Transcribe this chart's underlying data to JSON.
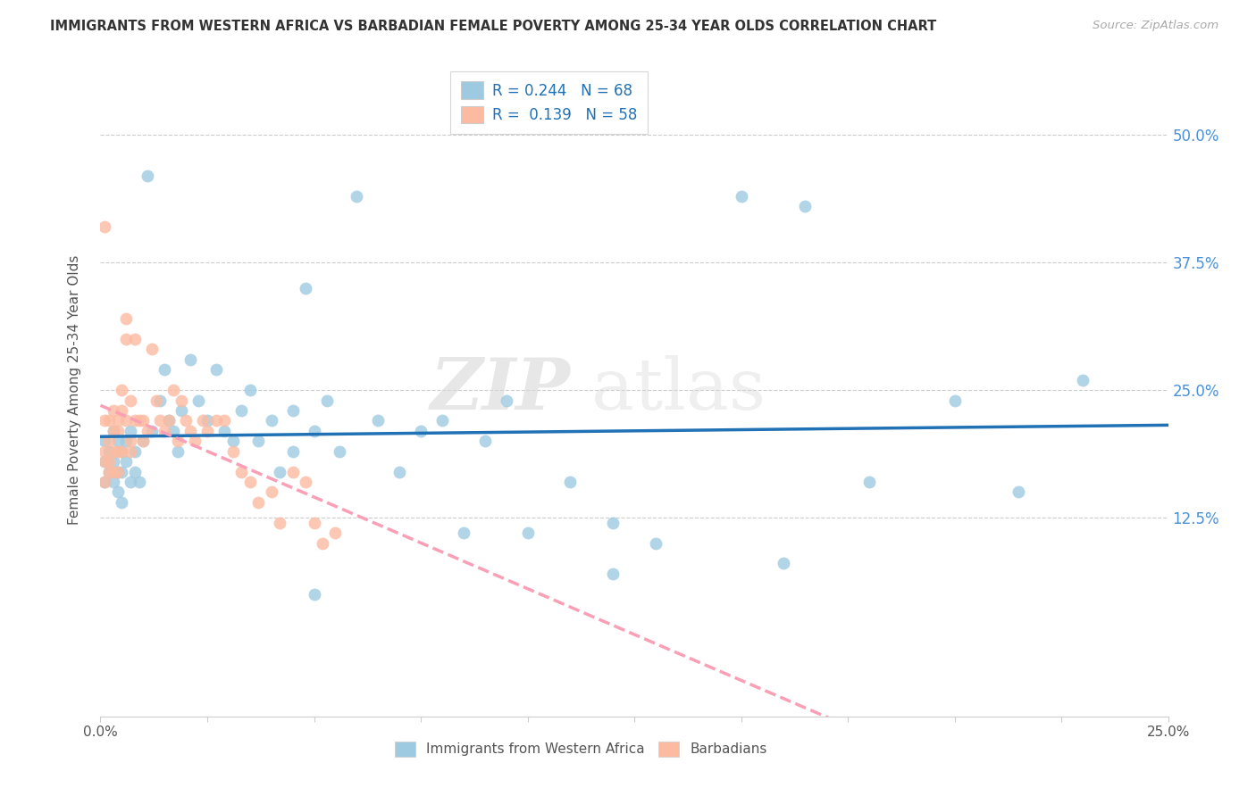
{
  "title": "IMMIGRANTS FROM WESTERN AFRICA VS BARBADIAN FEMALE POVERTY AMONG 25-34 YEAR OLDS CORRELATION CHART",
  "source": "Source: ZipAtlas.com",
  "ylabel": "Female Poverty Among 25-34 Year Olds",
  "yticks_labels": [
    "50.0%",
    "37.5%",
    "25.0%",
    "12.5%"
  ],
  "ytick_vals": [
    0.5,
    0.375,
    0.25,
    0.125
  ],
  "xtick_show": [
    "0.0%",
    "25.0%"
  ],
  "xmin": 0.0,
  "xmax": 0.25,
  "ymin": -0.07,
  "ymax": 0.57,
  "r_blue": "0.244",
  "n_blue": "68",
  "r_pink": "0.139",
  "n_pink": "58",
  "color_blue_scatter": "#9ecae1",
  "color_pink_scatter": "#fcbba1",
  "color_blue_line": "#2171b5",
  "color_pink_line": "#fa9fb5",
  "color_grid": "#cccccc",
  "watermark_zip": "ZIP",
  "watermark_atlas": "atlas",
  "legend_label_blue": "Immigrants from Western Africa",
  "legend_label_pink": "Barbadians",
  "blue_x": [
    0.001,
    0.001,
    0.001,
    0.002,
    0.002,
    0.003,
    0.003,
    0.003,
    0.004,
    0.004,
    0.004,
    0.005,
    0.005,
    0.005,
    0.006,
    0.006,
    0.007,
    0.007,
    0.008,
    0.008,
    0.009,
    0.01,
    0.011,
    0.012,
    0.014,
    0.015,
    0.016,
    0.017,
    0.018,
    0.019,
    0.021,
    0.023,
    0.025,
    0.027,
    0.029,
    0.031,
    0.033,
    0.035,
    0.037,
    0.04,
    0.042,
    0.045,
    0.048,
    0.05,
    0.053,
    0.056,
    0.06,
    0.065,
    0.07,
    0.075,
    0.08,
    0.085,
    0.09,
    0.095,
    0.1,
    0.11,
    0.12,
    0.13,
    0.15,
    0.165,
    0.18,
    0.2,
    0.215,
    0.23,
    0.12,
    0.16,
    0.045,
    0.05
  ],
  "blue_y": [
    0.2,
    0.18,
    0.16,
    0.19,
    0.17,
    0.21,
    0.18,
    0.16,
    0.2,
    0.17,
    0.15,
    0.19,
    0.17,
    0.14,
    0.2,
    0.18,
    0.21,
    0.16,
    0.19,
    0.17,
    0.16,
    0.2,
    0.46,
    0.21,
    0.24,
    0.27,
    0.22,
    0.21,
    0.19,
    0.23,
    0.28,
    0.24,
    0.22,
    0.27,
    0.21,
    0.2,
    0.23,
    0.25,
    0.2,
    0.22,
    0.17,
    0.23,
    0.35,
    0.21,
    0.24,
    0.19,
    0.44,
    0.22,
    0.17,
    0.21,
    0.22,
    0.11,
    0.2,
    0.24,
    0.11,
    0.16,
    0.12,
    0.1,
    0.44,
    0.43,
    0.16,
    0.24,
    0.15,
    0.26,
    0.07,
    0.08,
    0.19,
    0.05
  ],
  "pink_x": [
    0.001,
    0.001,
    0.001,
    0.001,
    0.001,
    0.002,
    0.002,
    0.002,
    0.002,
    0.003,
    0.003,
    0.003,
    0.003,
    0.004,
    0.004,
    0.004,
    0.004,
    0.005,
    0.005,
    0.005,
    0.006,
    0.006,
    0.006,
    0.007,
    0.007,
    0.007,
    0.008,
    0.008,
    0.009,
    0.01,
    0.01,
    0.011,
    0.012,
    0.013,
    0.014,
    0.015,
    0.016,
    0.017,
    0.018,
    0.019,
    0.02,
    0.021,
    0.022,
    0.024,
    0.025,
    0.027,
    0.029,
    0.031,
    0.033,
    0.035,
    0.037,
    0.04,
    0.042,
    0.045,
    0.048,
    0.05,
    0.052,
    0.055
  ],
  "pink_y": [
    0.41,
    0.19,
    0.22,
    0.18,
    0.16,
    0.2,
    0.22,
    0.18,
    0.17,
    0.19,
    0.21,
    0.23,
    0.17,
    0.21,
    0.19,
    0.22,
    0.17,
    0.25,
    0.23,
    0.19,
    0.3,
    0.32,
    0.22,
    0.2,
    0.24,
    0.19,
    0.3,
    0.22,
    0.22,
    0.2,
    0.22,
    0.21,
    0.29,
    0.24,
    0.22,
    0.21,
    0.22,
    0.25,
    0.2,
    0.24,
    0.22,
    0.21,
    0.2,
    0.22,
    0.21,
    0.22,
    0.22,
    0.19,
    0.17,
    0.16,
    0.14,
    0.15,
    0.12,
    0.17,
    0.16,
    0.12,
    0.1,
    0.11
  ]
}
